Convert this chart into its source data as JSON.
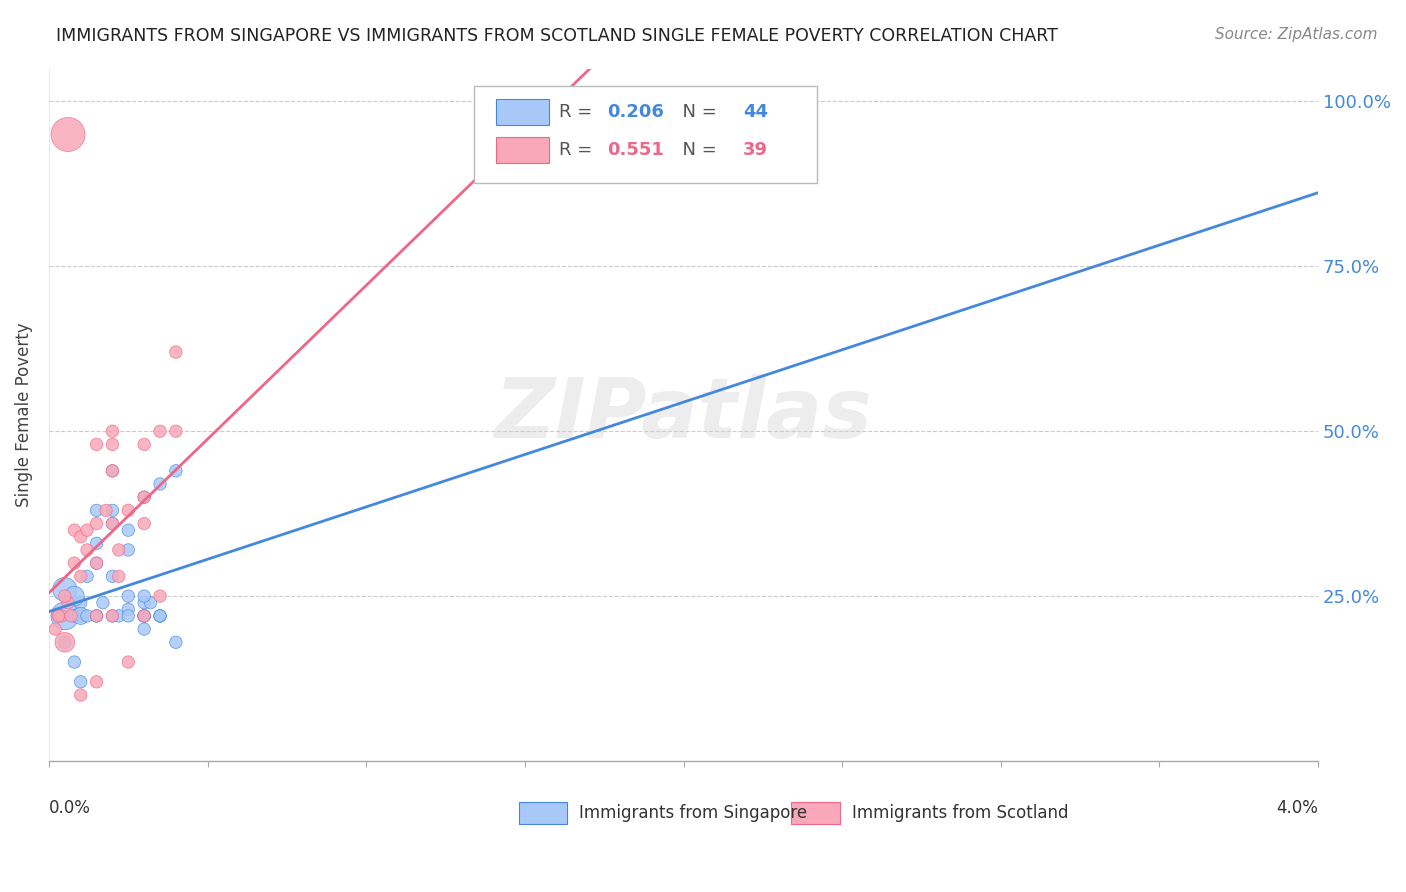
{
  "title": "IMMIGRANTS FROM SINGAPORE VS IMMIGRANTS FROM SCOTLAND SINGLE FEMALE POVERTY CORRELATION CHART",
  "source": "Source: ZipAtlas.com",
  "ylabel": "Single Female Poverty",
  "yticks": [
    0.0,
    0.25,
    0.5,
    0.75,
    1.0
  ],
  "ytick_labels": [
    "",
    "25.0%",
    "50.0%",
    "75.0%",
    "100.0%"
  ],
  "xlim": [
    0.0,
    0.04
  ],
  "ylim": [
    0.0,
    1.05
  ],
  "watermark": "ZIPatlas",
  "singapore_color": "#a8c8f8",
  "scotland_color": "#f8a8b8",
  "singapore_line_color": "#4488dd",
  "scotland_line_color": "#ee6688",
  "singapore_R": "0.206",
  "singapore_N": "44",
  "scotland_R": "0.551",
  "scotland_N": "39",
  "singapore_x": [
    0.0005,
    0.001,
    0.001,
    0.0015,
    0.0015,
    0.002,
    0.002,
    0.002,
    0.002,
    0.0025,
    0.0025,
    0.0025,
    0.003,
    0.003,
    0.003,
    0.003,
    0.003,
    0.0035,
    0.0035,
    0.004,
    0.004,
    0.0005,
    0.0008,
    0.0008,
    0.001,
    0.001,
    0.0012,
    0.0012,
    0.0015,
    0.0015,
    0.0015,
    0.0017,
    0.002,
    0.0022,
    0.0025,
    0.0025,
    0.003,
    0.003,
    0.0035,
    0.0035,
    0.0032,
    0.003,
    0.0005,
    0.0008
  ],
  "singapore_y": [
    0.18,
    0.22,
    0.24,
    0.3,
    0.33,
    0.28,
    0.36,
    0.38,
    0.22,
    0.35,
    0.32,
    0.25,
    0.22,
    0.24,
    0.2,
    0.4,
    0.22,
    0.22,
    0.42,
    0.18,
    0.44,
    0.22,
    0.15,
    0.22,
    0.12,
    0.22,
    0.22,
    0.28,
    0.22,
    0.22,
    0.38,
    0.24,
    0.44,
    0.22,
    0.23,
    0.22,
    0.22,
    0.22,
    0.22,
    0.22,
    0.24,
    0.25,
    0.26,
    0.25
  ],
  "singapore_sizes": [
    80,
    80,
    80,
    80,
    80,
    80,
    80,
    80,
    80,
    80,
    80,
    80,
    80,
    80,
    80,
    80,
    80,
    80,
    80,
    80,
    80,
    400,
    80,
    80,
    80,
    150,
    80,
    80,
    80,
    80,
    80,
    80,
    80,
    80,
    80,
    80,
    80,
    80,
    80,
    80,
    80,
    80,
    300,
    200
  ],
  "scotland_x": [
    0.0002,
    0.0003,
    0.0004,
    0.0005,
    0.0006,
    0.0007,
    0.0008,
    0.001,
    0.001,
    0.0012,
    0.0015,
    0.0015,
    0.0015,
    0.0015,
    0.002,
    0.002,
    0.002,
    0.002,
    0.0022,
    0.0025,
    0.0025,
    0.003,
    0.003,
    0.0035,
    0.004,
    0.0003,
    0.0005,
    0.0008,
    0.001,
    0.0012,
    0.0015,
    0.0018,
    0.002,
    0.0022,
    0.003,
    0.003,
    0.0035,
    0.004,
    0.0006
  ],
  "scotland_y": [
    0.2,
    0.22,
    0.22,
    0.18,
    0.24,
    0.22,
    0.35,
    0.34,
    0.28,
    0.35,
    0.36,
    0.3,
    0.22,
    0.48,
    0.22,
    0.48,
    0.5,
    0.36,
    0.32,
    0.15,
    0.38,
    0.36,
    0.48,
    0.5,
    0.5,
    0.22,
    0.25,
    0.3,
    0.1,
    0.32,
    0.12,
    0.38,
    0.44,
    0.28,
    0.22,
    0.4,
    0.25,
    0.62,
    0.95
  ],
  "scotland_sizes": [
    80,
    80,
    80,
    200,
    80,
    80,
    80,
    80,
    80,
    80,
    80,
    80,
    80,
    80,
    80,
    80,
    80,
    80,
    80,
    80,
    80,
    80,
    80,
    80,
    80,
    80,
    80,
    80,
    80,
    80,
    80,
    80,
    80,
    80,
    80,
    80,
    80,
    80,
    600
  ]
}
